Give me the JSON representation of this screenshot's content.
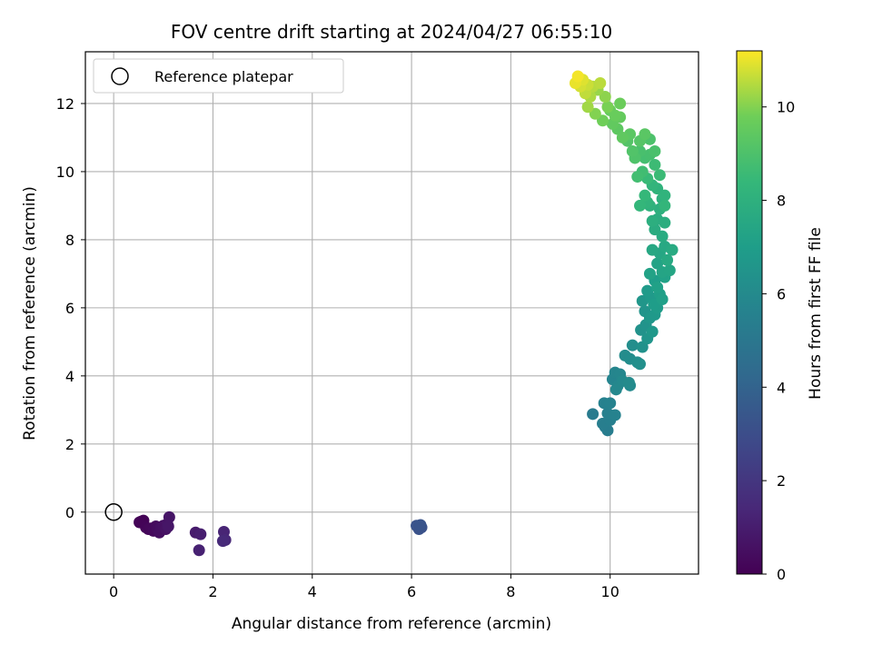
{
  "chart_data": {
    "type": "scatter",
    "title": "FOV centre drift starting at 2024/04/27 06:55:10",
    "xlabel": "Angular distance from reference (arcmin)",
    "ylabel": "Rotation from reference (arcmin)",
    "xlim": [
      -0.57,
      11.78
    ],
    "ylim": [
      -1.82,
      13.52
    ],
    "xticks": [
      "0",
      "2",
      "4",
      "6",
      "8",
      "10"
    ],
    "yticks": [
      "0",
      "2",
      "4",
      "6",
      "8",
      "10",
      "12"
    ],
    "grid": true,
    "legend": {
      "placement": "top-left",
      "entries": [
        "Reference platepar"
      ]
    },
    "reference_point": {
      "name": "Reference platepar",
      "x": 0,
      "y": 0
    },
    "colorbar": {
      "label": "Hours from first FF file",
      "range": [
        0,
        11.2
      ],
      "ticks": [
        "0",
        "2",
        "4",
        "6",
        "8",
        "10"
      ],
      "colormap": "viridis"
    },
    "series": [
      {
        "columns": [
          "x",
          "y",
          "hours"
        ],
        "points": [
          [
            0.55,
            -0.28,
            0.05
          ],
          [
            0.6,
            -0.25,
            0.08
          ],
          [
            0.52,
            -0.3,
            0.1
          ],
          [
            0.65,
            -0.45,
            0.15
          ],
          [
            0.7,
            -0.5,
            0.2
          ],
          [
            0.75,
            -0.48,
            0.25
          ],
          [
            0.8,
            -0.55,
            0.3
          ],
          [
            0.85,
            -0.42,
            0.35
          ],
          [
            0.88,
            -0.5,
            0.4
          ],
          [
            0.92,
            -0.6,
            0.45
          ],
          [
            0.95,
            -0.45,
            0.5
          ],
          [
            1.0,
            -0.4,
            0.55
          ],
          [
            1.05,
            -0.5,
            0.6
          ],
          [
            1.08,
            -0.35,
            0.65
          ],
          [
            1.12,
            -0.15,
            0.7
          ],
          [
            1.1,
            -0.42,
            0.75
          ],
          [
            1.65,
            -0.6,
            0.95
          ],
          [
            1.75,
            -0.65,
            1.05
          ],
          [
            1.72,
            -1.12,
            1.15
          ],
          [
            2.22,
            -0.58,
            1.3
          ],
          [
            2.25,
            -0.82,
            1.4
          ],
          [
            2.2,
            -0.85,
            1.5
          ],
          [
            6.12,
            -0.42,
            3.1
          ],
          [
            6.2,
            -0.45,
            3.15
          ],
          [
            6.15,
            -0.5,
            3.2
          ],
          [
            6.1,
            -0.4,
            3.25
          ],
          [
            6.18,
            -0.38,
            3.3
          ],
          [
            9.65,
            2.88,
            5.2
          ],
          [
            9.9,
            2.5,
            5.3
          ],
          [
            9.95,
            2.4,
            5.35
          ],
          [
            9.85,
            2.6,
            5.4
          ],
          [
            10.0,
            2.7,
            5.45
          ],
          [
            9.95,
            2.9,
            5.5
          ],
          [
            9.88,
            3.2,
            5.55
          ],
          [
            10.0,
            3.2,
            5.6
          ],
          [
            10.1,
            2.85,
            5.62
          ],
          [
            10.05,
            3.9,
            5.7
          ],
          [
            10.1,
            4.1,
            5.75
          ],
          [
            10.2,
            4.05,
            5.8
          ],
          [
            10.15,
            3.7,
            5.85
          ],
          [
            10.12,
            3.6,
            5.9
          ],
          [
            10.25,
            3.85,
            5.95
          ],
          [
            10.4,
            3.72,
            6.0
          ],
          [
            10.38,
            3.8,
            6.05
          ],
          [
            10.3,
            4.6,
            6.1
          ],
          [
            10.4,
            4.5,
            6.15
          ],
          [
            10.45,
            4.9,
            6.2
          ],
          [
            10.55,
            4.4,
            6.25
          ],
          [
            10.6,
            4.35,
            6.3
          ],
          [
            10.65,
            4.85,
            6.35
          ],
          [
            10.62,
            5.35,
            6.4
          ],
          [
            10.72,
            5.5,
            6.45
          ],
          [
            10.7,
            5.9,
            6.5
          ],
          [
            10.75,
            5.1,
            6.55
          ],
          [
            10.65,
            6.2,
            6.6
          ],
          [
            10.8,
            5.7,
            6.65
          ],
          [
            10.85,
            5.3,
            6.7
          ],
          [
            10.9,
            5.8,
            6.75
          ],
          [
            10.82,
            6.3,
            6.8
          ],
          [
            10.75,
            6.5,
            6.85
          ],
          [
            10.95,
            6.0,
            6.9
          ],
          [
            10.88,
            6.1,
            6.95
          ],
          [
            10.9,
            6.8,
            7.0
          ],
          [
            11.0,
            6.4,
            7.05
          ],
          [
            11.05,
            6.25,
            7.1
          ],
          [
            10.95,
            6.6,
            7.15
          ],
          [
            11.1,
            6.9,
            7.2
          ],
          [
            10.8,
            7.0,
            7.25
          ],
          [
            10.95,
            7.3,
            7.3
          ],
          [
            11.05,
            7.05,
            7.35
          ],
          [
            11.2,
            7.1,
            7.4
          ],
          [
            11.0,
            7.6,
            7.45
          ],
          [
            10.85,
            7.7,
            7.5
          ],
          [
            11.1,
            7.8,
            7.55
          ],
          [
            11.15,
            7.4,
            7.6
          ],
          [
            11.25,
            7.7,
            7.65
          ],
          [
            11.05,
            8.1,
            7.7
          ],
          [
            10.9,
            8.3,
            7.75
          ],
          [
            10.95,
            8.6,
            7.8
          ],
          [
            11.1,
            8.5,
            7.85
          ],
          [
            10.85,
            8.55,
            7.9
          ],
          [
            11.0,
            8.9,
            7.95
          ],
          [
            11.05,
            9.2,
            8.0
          ],
          [
            10.8,
            9.0,
            8.05
          ],
          [
            10.95,
            9.5,
            8.1
          ],
          [
            11.1,
            9.3,
            8.15
          ],
          [
            10.75,
            9.1,
            8.2
          ],
          [
            10.85,
            9.6,
            8.25
          ],
          [
            11.1,
            9.0,
            8.3
          ],
          [
            10.6,
            9.0,
            8.35
          ],
          [
            10.7,
            9.3,
            8.4
          ],
          [
            10.75,
            9.8,
            8.5
          ],
          [
            11.0,
            9.9,
            8.55
          ],
          [
            10.9,
            10.2,
            8.6
          ],
          [
            10.65,
            10.0,
            8.7
          ],
          [
            10.55,
            9.85,
            8.75
          ],
          [
            10.7,
            10.4,
            8.8
          ],
          [
            10.8,
            10.5,
            8.85
          ],
          [
            10.6,
            10.6,
            8.9
          ],
          [
            10.9,
            10.6,
            8.95
          ],
          [
            10.8,
            10.95,
            9.0
          ],
          [
            10.5,
            10.4,
            9.05
          ],
          [
            10.45,
            10.6,
            9.1
          ],
          [
            10.35,
            10.9,
            9.15
          ],
          [
            10.6,
            10.9,
            9.2
          ],
          [
            10.7,
            11.1,
            9.3
          ],
          [
            10.4,
            11.1,
            9.35
          ],
          [
            10.15,
            11.25,
            9.4
          ],
          [
            10.25,
            11.0,
            9.45
          ],
          [
            10.05,
            11.4,
            9.5
          ],
          [
            10.2,
            11.6,
            9.55
          ],
          [
            10.0,
            11.8,
            9.6
          ],
          [
            10.1,
            11.65,
            9.65
          ],
          [
            10.2,
            12.0,
            9.7
          ],
          [
            9.85,
            11.5,
            9.8
          ],
          [
            9.95,
            11.9,
            9.9
          ],
          [
            9.7,
            11.7,
            10.0
          ],
          [
            9.9,
            12.2,
            10.1
          ],
          [
            9.75,
            12.4,
            10.2
          ],
          [
            9.55,
            11.9,
            10.3
          ],
          [
            9.6,
            12.2,
            10.4
          ],
          [
            9.65,
            12.5,
            10.5
          ],
          [
            9.8,
            12.6,
            10.55
          ],
          [
            9.5,
            12.3,
            10.6
          ],
          [
            9.55,
            12.55,
            10.7
          ],
          [
            9.4,
            12.5,
            10.8
          ],
          [
            9.45,
            12.7,
            10.9
          ],
          [
            9.3,
            12.6,
            11.0
          ],
          [
            9.35,
            12.8,
            11.1
          ]
        ]
      }
    ]
  }
}
